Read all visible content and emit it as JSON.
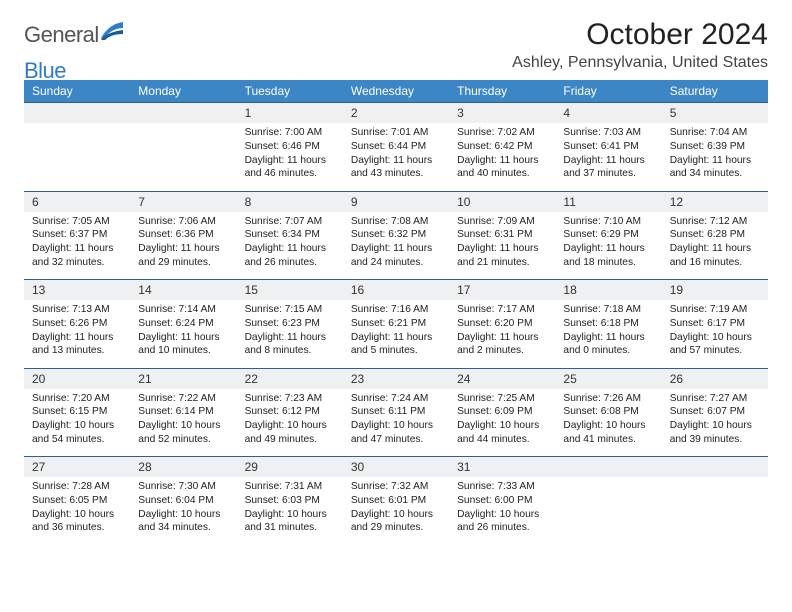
{
  "header": {
    "logo_part1": "General",
    "logo_part2": "Blue",
    "title": "October 2024",
    "location": "Ashley, Pennsylvania, United States"
  },
  "colors": {
    "header_bg": "#3d86c6",
    "header_fg": "#ffffff",
    "daynum_bg": "#eef0f1",
    "row_divider": "#2f5f8f",
    "logo_accent": "#2f7dc4",
    "text_dark": "#222222"
  },
  "day_names": [
    "Sunday",
    "Monday",
    "Tuesday",
    "Wednesday",
    "Thursday",
    "Friday",
    "Saturday"
  ],
  "weeks": [
    {
      "nums": [
        "",
        "",
        "1",
        "2",
        "3",
        "4",
        "5"
      ],
      "cells": [
        null,
        null,
        {
          "sunrise": "Sunrise: 7:00 AM",
          "sunset": "Sunset: 6:46 PM",
          "day1": "Daylight: 11 hours",
          "day2": "and 46 minutes."
        },
        {
          "sunrise": "Sunrise: 7:01 AM",
          "sunset": "Sunset: 6:44 PM",
          "day1": "Daylight: 11 hours",
          "day2": "and 43 minutes."
        },
        {
          "sunrise": "Sunrise: 7:02 AM",
          "sunset": "Sunset: 6:42 PM",
          "day1": "Daylight: 11 hours",
          "day2": "and 40 minutes."
        },
        {
          "sunrise": "Sunrise: 7:03 AM",
          "sunset": "Sunset: 6:41 PM",
          "day1": "Daylight: 11 hours",
          "day2": "and 37 minutes."
        },
        {
          "sunrise": "Sunrise: 7:04 AM",
          "sunset": "Sunset: 6:39 PM",
          "day1": "Daylight: 11 hours",
          "day2": "and 34 minutes."
        }
      ]
    },
    {
      "nums": [
        "6",
        "7",
        "8",
        "9",
        "10",
        "11",
        "12"
      ],
      "cells": [
        {
          "sunrise": "Sunrise: 7:05 AM",
          "sunset": "Sunset: 6:37 PM",
          "day1": "Daylight: 11 hours",
          "day2": "and 32 minutes."
        },
        {
          "sunrise": "Sunrise: 7:06 AM",
          "sunset": "Sunset: 6:36 PM",
          "day1": "Daylight: 11 hours",
          "day2": "and 29 minutes."
        },
        {
          "sunrise": "Sunrise: 7:07 AM",
          "sunset": "Sunset: 6:34 PM",
          "day1": "Daylight: 11 hours",
          "day2": "and 26 minutes."
        },
        {
          "sunrise": "Sunrise: 7:08 AM",
          "sunset": "Sunset: 6:32 PM",
          "day1": "Daylight: 11 hours",
          "day2": "and 24 minutes."
        },
        {
          "sunrise": "Sunrise: 7:09 AM",
          "sunset": "Sunset: 6:31 PM",
          "day1": "Daylight: 11 hours",
          "day2": "and 21 minutes."
        },
        {
          "sunrise": "Sunrise: 7:10 AM",
          "sunset": "Sunset: 6:29 PM",
          "day1": "Daylight: 11 hours",
          "day2": "and 18 minutes."
        },
        {
          "sunrise": "Sunrise: 7:12 AM",
          "sunset": "Sunset: 6:28 PM",
          "day1": "Daylight: 11 hours",
          "day2": "and 16 minutes."
        }
      ]
    },
    {
      "nums": [
        "13",
        "14",
        "15",
        "16",
        "17",
        "18",
        "19"
      ],
      "cells": [
        {
          "sunrise": "Sunrise: 7:13 AM",
          "sunset": "Sunset: 6:26 PM",
          "day1": "Daylight: 11 hours",
          "day2": "and 13 minutes."
        },
        {
          "sunrise": "Sunrise: 7:14 AM",
          "sunset": "Sunset: 6:24 PM",
          "day1": "Daylight: 11 hours",
          "day2": "and 10 minutes."
        },
        {
          "sunrise": "Sunrise: 7:15 AM",
          "sunset": "Sunset: 6:23 PM",
          "day1": "Daylight: 11 hours",
          "day2": "and 8 minutes."
        },
        {
          "sunrise": "Sunrise: 7:16 AM",
          "sunset": "Sunset: 6:21 PM",
          "day1": "Daylight: 11 hours",
          "day2": "and 5 minutes."
        },
        {
          "sunrise": "Sunrise: 7:17 AM",
          "sunset": "Sunset: 6:20 PM",
          "day1": "Daylight: 11 hours",
          "day2": "and 2 minutes."
        },
        {
          "sunrise": "Sunrise: 7:18 AM",
          "sunset": "Sunset: 6:18 PM",
          "day1": "Daylight: 11 hours",
          "day2": "and 0 minutes."
        },
        {
          "sunrise": "Sunrise: 7:19 AM",
          "sunset": "Sunset: 6:17 PM",
          "day1": "Daylight: 10 hours",
          "day2": "and 57 minutes."
        }
      ]
    },
    {
      "nums": [
        "20",
        "21",
        "22",
        "23",
        "24",
        "25",
        "26"
      ],
      "cells": [
        {
          "sunrise": "Sunrise: 7:20 AM",
          "sunset": "Sunset: 6:15 PM",
          "day1": "Daylight: 10 hours",
          "day2": "and 54 minutes."
        },
        {
          "sunrise": "Sunrise: 7:22 AM",
          "sunset": "Sunset: 6:14 PM",
          "day1": "Daylight: 10 hours",
          "day2": "and 52 minutes."
        },
        {
          "sunrise": "Sunrise: 7:23 AM",
          "sunset": "Sunset: 6:12 PM",
          "day1": "Daylight: 10 hours",
          "day2": "and 49 minutes."
        },
        {
          "sunrise": "Sunrise: 7:24 AM",
          "sunset": "Sunset: 6:11 PM",
          "day1": "Daylight: 10 hours",
          "day2": "and 47 minutes."
        },
        {
          "sunrise": "Sunrise: 7:25 AM",
          "sunset": "Sunset: 6:09 PM",
          "day1": "Daylight: 10 hours",
          "day2": "and 44 minutes."
        },
        {
          "sunrise": "Sunrise: 7:26 AM",
          "sunset": "Sunset: 6:08 PM",
          "day1": "Daylight: 10 hours",
          "day2": "and 41 minutes."
        },
        {
          "sunrise": "Sunrise: 7:27 AM",
          "sunset": "Sunset: 6:07 PM",
          "day1": "Daylight: 10 hours",
          "day2": "and 39 minutes."
        }
      ]
    },
    {
      "nums": [
        "27",
        "28",
        "29",
        "30",
        "31",
        "",
        ""
      ],
      "cells": [
        {
          "sunrise": "Sunrise: 7:28 AM",
          "sunset": "Sunset: 6:05 PM",
          "day1": "Daylight: 10 hours",
          "day2": "and 36 minutes."
        },
        {
          "sunrise": "Sunrise: 7:30 AM",
          "sunset": "Sunset: 6:04 PM",
          "day1": "Daylight: 10 hours",
          "day2": "and 34 minutes."
        },
        {
          "sunrise": "Sunrise: 7:31 AM",
          "sunset": "Sunset: 6:03 PM",
          "day1": "Daylight: 10 hours",
          "day2": "and 31 minutes."
        },
        {
          "sunrise": "Sunrise: 7:32 AM",
          "sunset": "Sunset: 6:01 PM",
          "day1": "Daylight: 10 hours",
          "day2": "and 29 minutes."
        },
        {
          "sunrise": "Sunrise: 7:33 AM",
          "sunset": "Sunset: 6:00 PM",
          "day1": "Daylight: 10 hours",
          "day2": "and 26 minutes."
        },
        null,
        null
      ]
    }
  ]
}
